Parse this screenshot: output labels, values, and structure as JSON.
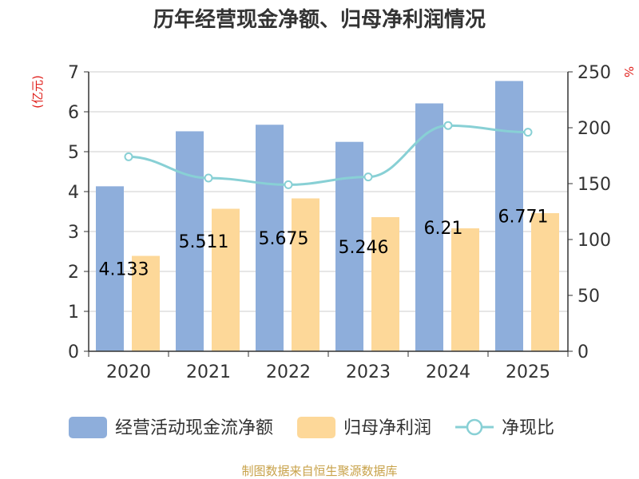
{
  "chart_data": {
    "type": "bar",
    "title": "历年经营现金净额、归母净利润情况",
    "categories": [
      "2020",
      "2021",
      "2022",
      "2023",
      "2024",
      "2025"
    ],
    "series": [
      {
        "name": "经营活动现金流净额",
        "type": "bar",
        "axis": "left",
        "color": "#8eaedb",
        "values": [
          4.133,
          5.511,
          5.675,
          5.246,
          6.21,
          6.771
        ],
        "labels": [
          "4.133",
          "5.511",
          "5.675",
          "5.246",
          "6.21",
          "6.771"
        ]
      },
      {
        "name": "归母净利润",
        "type": "bar",
        "axis": "left",
        "color": "#fdd899",
        "values": [
          2.39,
          3.57,
          3.83,
          3.36,
          3.08,
          3.46
        ]
      },
      {
        "name": "净现比",
        "type": "line",
        "axis": "right",
        "color": "#88d0d5",
        "values": [
          174,
          155,
          149,
          156,
          202,
          196
        ]
      }
    ],
    "y_left": {
      "unit": "(亿元)",
      "min": 0,
      "max": 7,
      "ticks": [
        "0",
        "1",
        "2",
        "3",
        "4",
        "5",
        "6",
        "7"
      ]
    },
    "y_right": {
      "unit": "%",
      "min": 0,
      "max": 250,
      "ticks": [
        "0",
        "50",
        "100",
        "150",
        "200",
        "250"
      ]
    },
    "grid": true,
    "legend_position": "bottom"
  },
  "source": "制图数据来自恒生聚源数据库"
}
